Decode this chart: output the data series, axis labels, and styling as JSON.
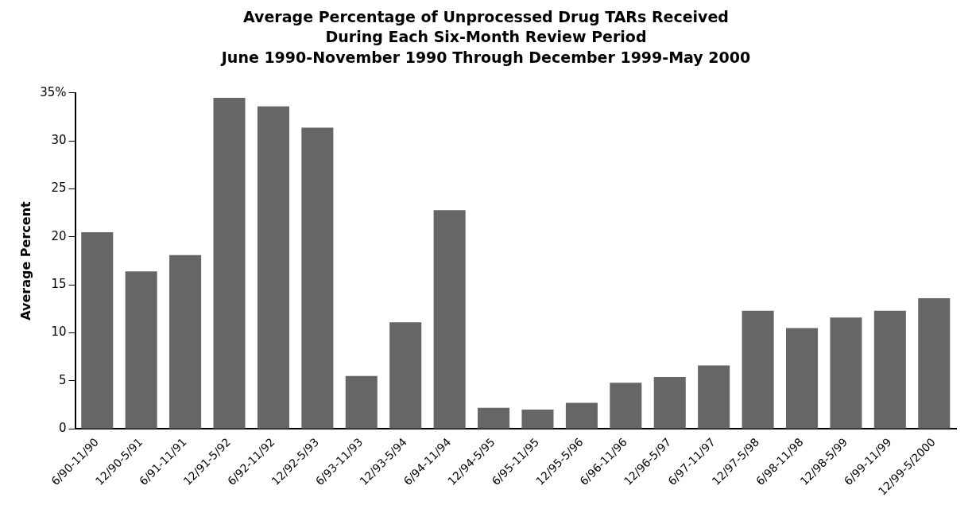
{
  "chart_data": {
    "type": "bar",
    "title": "Average Percentage of Unprocessed Drug TARs Received\nDuring Each Six-Month Review Period\nJune 1990-November 1990 Through December 1999-May 2000",
    "ylabel": "Average Percent",
    "categories": [
      "6/90-11/90",
      "12/90-5/91",
      "6/91-11/91",
      "12/91-5/92",
      "6/92-11/92",
      "12/92-5/93",
      "6/93-11/93",
      "12/93-5/94",
      "6/94-11/94",
      "12/94-5/95",
      "6/95-11/95",
      "12/95-5/96",
      "6/96-11/96",
      "12/96-5/97",
      "6/97-11/97",
      "12/97-5/98",
      "6/98-11/98",
      "12/98-5/99",
      "6/99-11/99",
      "12/99-5/2000"
    ],
    "values": [
      20.5,
      16.4,
      18.1,
      34.5,
      33.6,
      31.4,
      5.5,
      11.1,
      22.8,
      2.2,
      2.0,
      2.7,
      4.8,
      5.4,
      6.6,
      12.3,
      10.5,
      11.6,
      12.3,
      13.6
    ],
    "color": "#666666",
    "ylim": [
      0,
      35
    ],
    "yticks": [
      0,
      5,
      10,
      15,
      20,
      25,
      30,
      {
        "value": 35,
        "label": "35%"
      }
    ],
    "grid": false,
    "legend": false
  }
}
